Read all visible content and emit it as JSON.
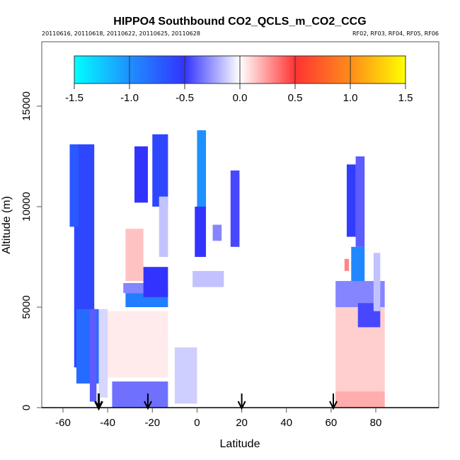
{
  "chart_data": {
    "type": "heatmap",
    "title": "HIPPO4 Southbound CO2_QCLS_m_CO2_CCG",
    "subtitle_left": "20110616, 20110618, 20110622, 20110625, 20110628",
    "subtitle_right": "RF02, RF03, RF04, RF05, RF06",
    "xlabel": "Latitude",
    "ylabel": "Altitude (m)",
    "xlim": [
      -70,
      90
    ],
    "ylim": [
      0,
      17000
    ],
    "x_ticks": [
      -60,
      -40,
      -20,
      0,
      20,
      40,
      60,
      80
    ],
    "x_tick_labels": [
      "-60",
      "-40",
      "-20",
      "0",
      "20",
      "40",
      "60",
      "80"
    ],
    "y_ticks": [
      0,
      5000,
      10000,
      15000
    ],
    "y_tick_labels": [
      "0",
      "5000",
      "10000",
      "15000"
    ],
    "colorbar": {
      "range": [
        -1.5,
        1.5
      ],
      "ticks": [
        -1.5,
        -1.0,
        -0.5,
        0.0,
        0.5,
        1.0,
        1.5
      ],
      "tick_labels": [
        "-1.5",
        "-1.0",
        "-0.5",
        "0.0",
        "0.5",
        "1.0",
        "1.5"
      ],
      "colors": [
        "#00ffff",
        "#1e90ff",
        "#3333ff",
        "#ffffff",
        "#ff3333",
        "#ff8c1a",
        "#ffff00"
      ]
    },
    "profile_markers_lat": [
      -44,
      -22,
      20,
      61
    ],
    "regions": [
      {
        "lat": [
          -55,
          -46
        ],
        "alt": [
          2000,
          13100
        ],
        "value": -0.6
      },
      {
        "lat": [
          -57,
          -53
        ],
        "alt": [
          9000,
          13100
        ],
        "value": -0.7
      },
      {
        "lat": [
          -54,
          -44
        ],
        "alt": [
          1200,
          4900
        ],
        "value": -0.8
      },
      {
        "lat": [
          -48,
          -45
        ],
        "alt": [
          300,
          4900
        ],
        "value": -0.4
      },
      {
        "lat": [
          -44,
          -40
        ],
        "alt": [
          500,
          4900
        ],
        "value": -0.1
      },
      {
        "lat": [
          -38,
          -13
        ],
        "alt": [
          0,
          1300
        ],
        "value": -0.35
      },
      {
        "lat": [
          -34,
          -21
        ],
        "alt": [
          1800,
          3800
        ],
        "value": 0.3
      },
      {
        "lat": [
          -40,
          -13
        ],
        "alt": [
          1500,
          4800
        ],
        "value": 0.05
      },
      {
        "lat": [
          -32,
          -13
        ],
        "alt": [
          5000,
          5700
        ],
        "value": -0.9
      },
      {
        "lat": [
          -33,
          -13
        ],
        "alt": [
          5700,
          6200
        ],
        "value": -0.3
      },
      {
        "lat": [
          -32,
          -24
        ],
        "alt": [
          6300,
          8900
        ],
        "value": 0.15
      },
      {
        "lat": [
          -24,
          -13
        ],
        "alt": [
          5500,
          7000
        ],
        "value": -0.5
      },
      {
        "lat": [
          -28,
          -22
        ],
        "alt": [
          10200,
          13000
        ],
        "value": -0.5
      },
      {
        "lat": [
          -20,
          -13
        ],
        "alt": [
          10000,
          13600
        ],
        "value": -0.6
      },
      {
        "lat": [
          -17,
          -13
        ],
        "alt": [
          7500,
          10500
        ],
        "value": -0.15
      },
      {
        "lat": [
          -10,
          0
        ],
        "alt": [
          200,
          3000
        ],
        "value": -0.12
      },
      {
        "lat": [
          -2,
          12
        ],
        "alt": [
          6000,
          6800
        ],
        "value": -0.15
      },
      {
        "lat": [
          0,
          4
        ],
        "alt": [
          10000,
          13800
        ],
        "value": -1.0
      },
      {
        "lat": [
          -1,
          4
        ],
        "alt": [
          7500,
          10000
        ],
        "value": -0.5
      },
      {
        "lat": [
          7,
          11
        ],
        "alt": [
          8300,
          9100
        ],
        "value": -0.3
      },
      {
        "lat": [
          15,
          19
        ],
        "alt": [
          8000,
          11800
        ],
        "value": -0.45
      },
      {
        "lat": [
          62,
          84
        ],
        "alt": [
          0,
          5000
        ],
        "value": 0.12
      },
      {
        "lat": [
          62,
          84
        ],
        "alt": [
          0,
          800
        ],
        "value": 0.2
      },
      {
        "lat": [
          67,
          71
        ],
        "alt": [
          8500,
          12100
        ],
        "value": -0.55
      },
      {
        "lat": [
          71,
          75
        ],
        "alt": [
          8000,
          12500
        ],
        "value": -0.4
      },
      {
        "lat": [
          69,
          75
        ],
        "alt": [
          6000,
          8000
        ],
        "value": -0.95
      },
      {
        "lat": [
          66,
          68
        ],
        "alt": [
          6800,
          7400
        ],
        "value": 0.3
      },
      {
        "lat": [
          62,
          84
        ],
        "alt": [
          5000,
          6300
        ],
        "value": -0.3
      },
      {
        "lat": [
          72,
          82
        ],
        "alt": [
          4000,
          5200
        ],
        "value": -0.45
      },
      {
        "lat": [
          79,
          82
        ],
        "alt": [
          4800,
          7700
        ],
        "value": -0.15
      }
    ]
  }
}
